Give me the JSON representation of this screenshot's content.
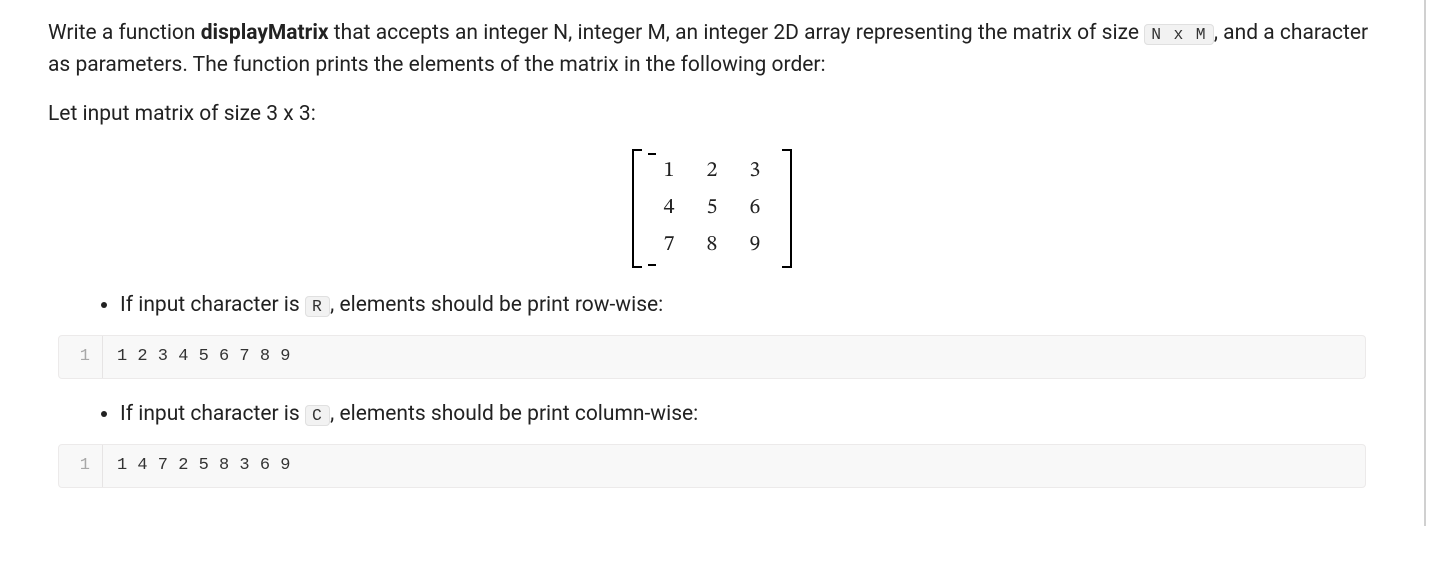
{
  "para1": {
    "t1": "Write a function ",
    "fn": "displayMatrix",
    "t2": " that accepts an integer N, integer M, an integer 2D array representing the matrix of size ",
    "code": "N x M",
    "t3": ", and a character as parameters. The function prints the elements of the matrix in the following order:"
  },
  "para2": "Let input matrix of size 3 x 3:",
  "matrix": {
    "rows": [
      [
        "1",
        "2",
        "3"
      ],
      [
        "4",
        "5",
        "6"
      ],
      [
        "7",
        "8",
        "9"
      ]
    ]
  },
  "bullet_r": {
    "t1": "If input character is ",
    "code": "R",
    "t2": ", elements should be print row-wise:"
  },
  "code_r": {
    "lineno": "1",
    "content": "1 2 3 4 5 6 7 8 9"
  },
  "bullet_c": {
    "t1": "If input character is ",
    "code": "C",
    "t2": ", elements should be print column-wise:"
  },
  "code_c": {
    "lineno": "1",
    "content": "1 4 7 2 5 8 3 6 9"
  },
  "colors": {
    "text": "#222222",
    "code_bg": "#f2f2f2",
    "code_border": "#e0e0e0",
    "block_bg": "#f8f8f8",
    "block_border": "#eceaea",
    "gutter_text": "#a8a8a8"
  }
}
